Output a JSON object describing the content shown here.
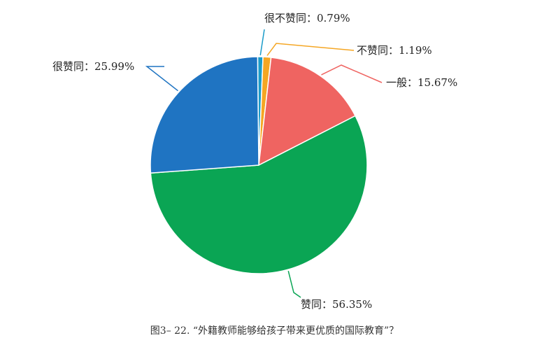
{
  "caption": "图3– 22. “外籍教师能够给孩子带来更优质的国际教育”？",
  "chart_data": {
    "type": "pie",
    "title": "",
    "legend": "none",
    "slices": [
      {
        "name": "很不赞同",
        "value": 0.79,
        "label": "很不赞同：0.79%",
        "color": "#1a9bc9"
      },
      {
        "name": "不赞同",
        "value": 1.19,
        "label": "不赞同：1.19%",
        "color": "#f5a623"
      },
      {
        "name": "一般",
        "value": 15.67,
        "label": "一般：15.67%",
        "color": "#ef6461"
      },
      {
        "name": "赞同",
        "value": 56.35,
        "label": "赞同：56.35%",
        "color": "#0aa554"
      },
      {
        "name": "很赞同",
        "value": 25.99,
        "label": "很赞同：25.99%",
        "color": "#1f74c2"
      }
    ]
  }
}
